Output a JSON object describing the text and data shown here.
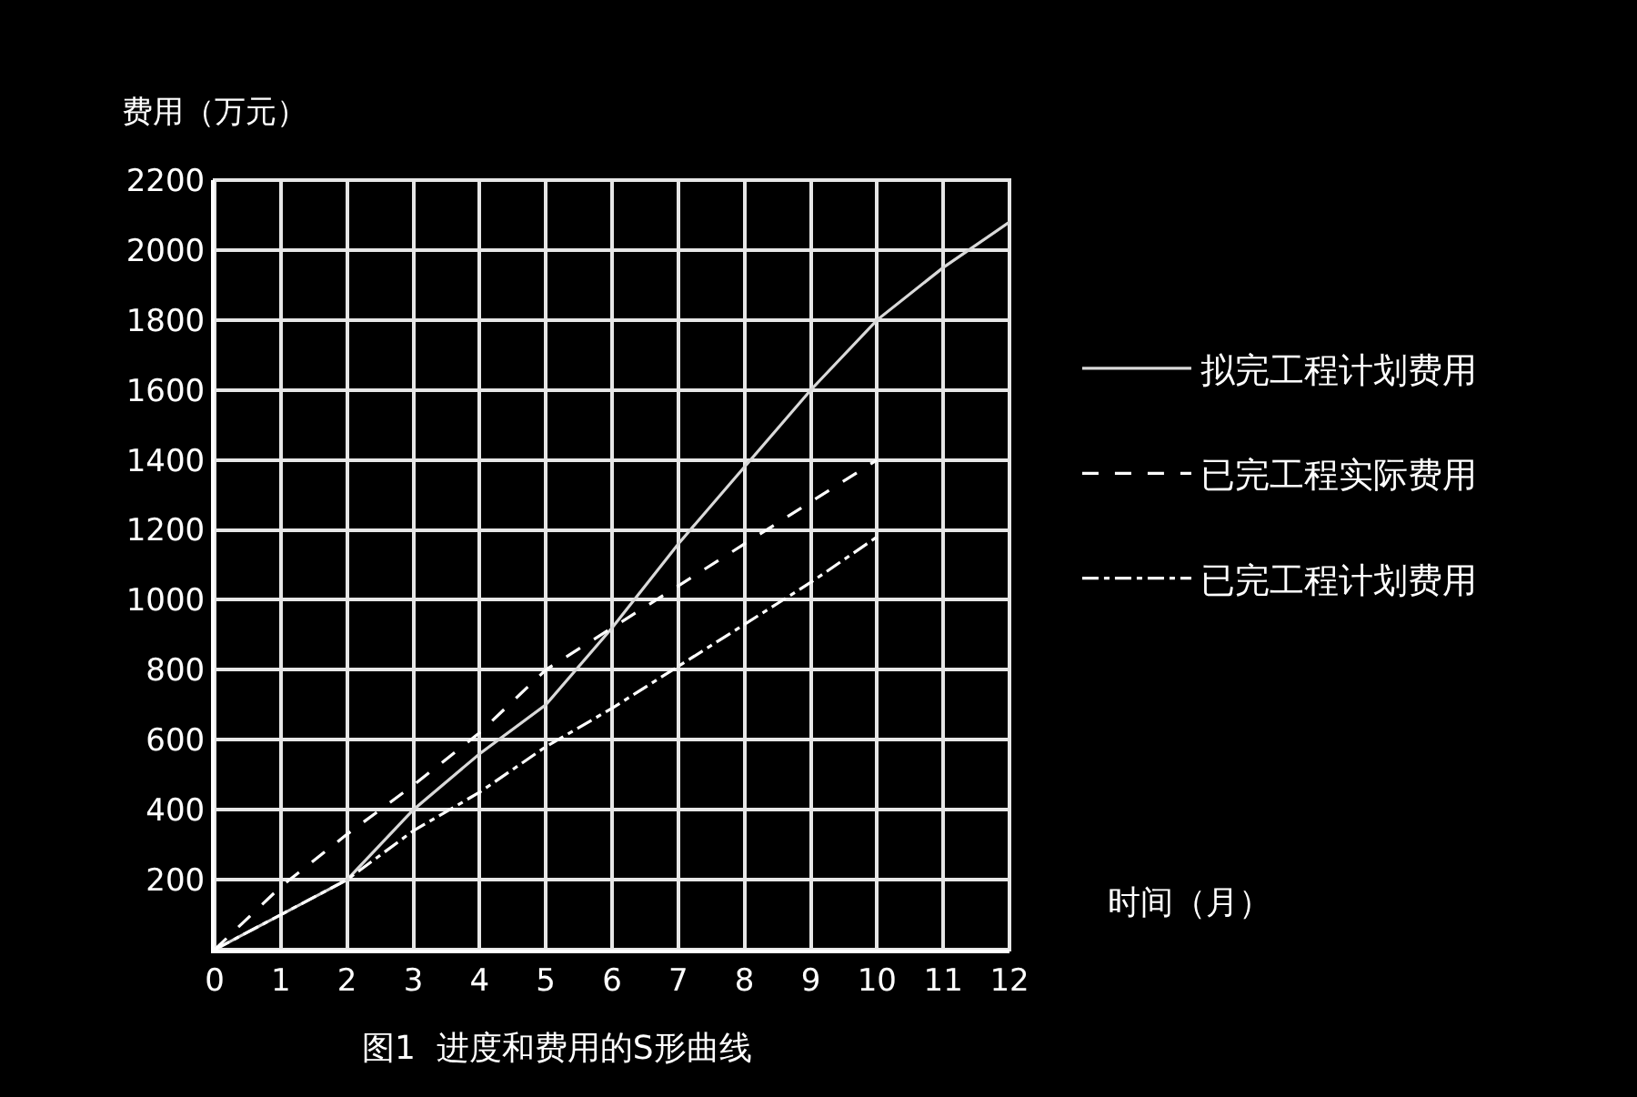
{
  "chart_data": {
    "type": "line",
    "title": "图1  进度和费用的S形曲线",
    "xlabel": "时间（月）",
    "ylabel": "费用（万元）",
    "x": [
      0,
      1,
      2,
      3,
      4,
      5,
      6,
      7,
      8,
      9,
      10,
      11,
      12
    ],
    "series": [
      {
        "name": "拟完工程计划费用",
        "color": "#d9d9d9",
        "line_style": "solid",
        "values": [
          0,
          100,
          200,
          400,
          560,
          700,
          920,
          1160,
          1380,
          1600,
          1800,
          1950,
          2080
        ]
      },
      {
        "name": "已完工程实际费用",
        "color": "#ffffff",
        "line_style": "dashed",
        "values": [
          0,
          180,
          330,
          470,
          620,
          800,
          920,
          1040,
          1160,
          1280,
          1400,
          null,
          null
        ]
      },
      {
        "name": "已完工程计划费用",
        "color": "#ffffff",
        "line_style": "dashdot",
        "values": [
          0,
          100,
          200,
          340,
          450,
          580,
          690,
          810,
          930,
          1050,
          1180,
          null,
          null
        ]
      }
    ],
    "xlim": [
      0,
      12
    ],
    "xticks": [
      0,
      1,
      2,
      3,
      4,
      5,
      6,
      7,
      8,
      9,
      10,
      11,
      12
    ],
    "ylim": [
      0,
      2200
    ],
    "yticks": [
      200,
      400,
      600,
      800,
      1000,
      1200,
      1400,
      1600,
      1800,
      2000,
      2200
    ],
    "grid": true,
    "legend": "right",
    "marker": "none"
  }
}
